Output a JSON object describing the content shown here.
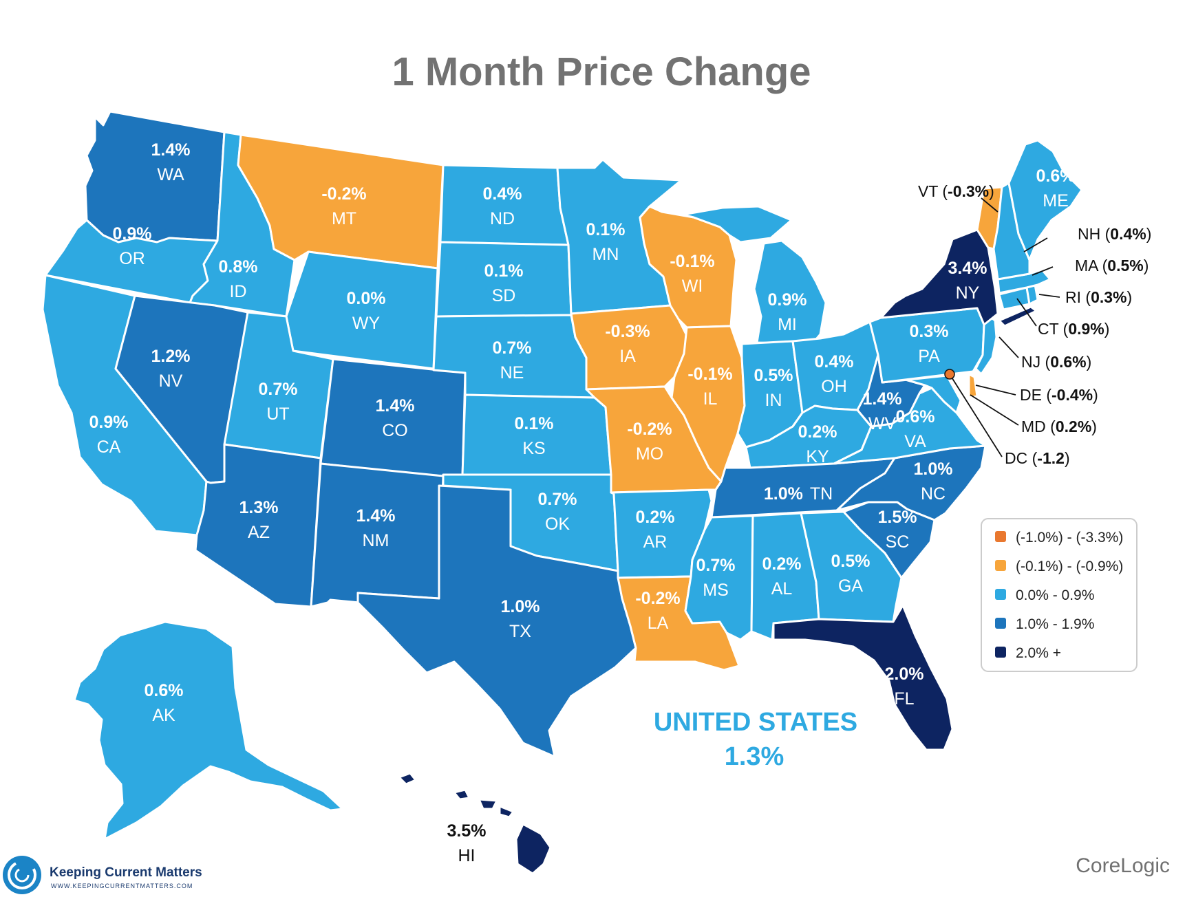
{
  "title": "1 Month Price Change",
  "colors": {
    "range1": "#e9782f",
    "range2": "#f7a53b",
    "range3": "#2ea9e1",
    "range4": "#1d75bc",
    "range5": "#0d2461"
  },
  "states": {
    "WA": {
      "value": "1.4%",
      "code": "WA"
    },
    "OR": {
      "value": "0.9%",
      "code": "OR"
    },
    "CA": {
      "value": "0.9%",
      "code": "CA"
    },
    "ID": {
      "value": "0.8%",
      "code": "ID"
    },
    "NV": {
      "value": "1.2%",
      "code": "NV"
    },
    "MT": {
      "value": "-0.2%",
      "code": "MT"
    },
    "WY": {
      "value": "0.0%",
      "code": "WY"
    },
    "UT": {
      "value": "0.7%",
      "code": "UT"
    },
    "AZ": {
      "value": "1.3%",
      "code": "AZ"
    },
    "CO": {
      "value": "1.4%",
      "code": "CO"
    },
    "NM": {
      "value": "1.4%",
      "code": "NM"
    },
    "ND": {
      "value": "0.4%",
      "code": "ND"
    },
    "SD": {
      "value": "0.1%",
      "code": "SD"
    },
    "NE": {
      "value": "0.7%",
      "code": "NE"
    },
    "KS": {
      "value": "0.1%",
      "code": "KS"
    },
    "OK": {
      "value": "0.7%",
      "code": "OK"
    },
    "TX": {
      "value": "1.0%",
      "code": "TX"
    },
    "MN": {
      "value": "0.1%",
      "code": "MN"
    },
    "IA": {
      "value": "-0.3%",
      "code": "IA"
    },
    "MO": {
      "value": "-0.2%",
      "code": "MO"
    },
    "AR": {
      "value": "0.2%",
      "code": "AR"
    },
    "LA": {
      "value": "-0.2%",
      "code": "LA"
    },
    "WI": {
      "value": "-0.1%",
      "code": "WI"
    },
    "IL": {
      "value": "-0.1%",
      "code": "IL"
    },
    "MI": {
      "value": "0.9%",
      "code": "MI"
    },
    "IN": {
      "value": "0.5%",
      "code": "IN"
    },
    "OH": {
      "value": "0.4%",
      "code": "OH"
    },
    "KY": {
      "value": "0.2%",
      "code": "KY"
    },
    "TN": {
      "value": "1.0%",
      "code": "TN"
    },
    "MS": {
      "value": "0.7%",
      "code": "MS"
    },
    "AL": {
      "value": "0.2%",
      "code": "AL"
    },
    "GA": {
      "value": "0.5%",
      "code": "GA"
    },
    "FL": {
      "value": "2.0%",
      "code": "FL"
    },
    "SC": {
      "value": "1.5%",
      "code": "SC"
    },
    "NC": {
      "value": "1.0%",
      "code": "NC"
    },
    "VA": {
      "value": "0.6%",
      "code": "VA"
    },
    "WV": {
      "value": "1.4%",
      "code": "WV"
    },
    "PA": {
      "value": "0.3%",
      "code": "PA"
    },
    "NY": {
      "value": "3.4%",
      "code": "NY"
    },
    "ME": {
      "value": "0.6%",
      "code": "ME"
    },
    "AK": {
      "value": "0.6%",
      "code": "AK"
    },
    "HI": {
      "value": "3.5%",
      "code": "HI"
    }
  },
  "callouts": {
    "VT": {
      "code": "VT",
      "value": "-0.3%"
    },
    "NH": {
      "code": "NH",
      "value": "0.4%"
    },
    "MA": {
      "code": "MA",
      "value": "0.5%"
    },
    "RI": {
      "code": "RI",
      "value": "0.3%"
    },
    "CT": {
      "code": "CT",
      "value": "0.9%"
    },
    "NJ": {
      "code": "NJ",
      "value": "0.6%"
    },
    "DE": {
      "code": "DE",
      "value": "-0.4%"
    },
    "MD": {
      "code": "MD",
      "value": "0.2%"
    },
    "DC": {
      "code": "DC",
      "value": "-1.2"
    }
  },
  "legend": [
    {
      "label": "(-1.0%) - (-3.3%)",
      "color": "#e9782f"
    },
    {
      "label": "(-0.1%) - (-0.9%)",
      "color": "#f7a53b"
    },
    {
      "label": "0.0% - 0.9%",
      "color": "#2ea9e1"
    },
    {
      "label": "1.0% - 1.9%",
      "color": "#1d75bc"
    },
    {
      "label": "2.0% +",
      "color": "#0d2461"
    }
  ],
  "national": {
    "label": "UNITED STATES",
    "value": "1.3%"
  },
  "source": "CoreLogic",
  "brand": {
    "name": "Keeping Current Matters",
    "url": "WWW.KEEPINGCURRENTMATTERS.COM"
  }
}
